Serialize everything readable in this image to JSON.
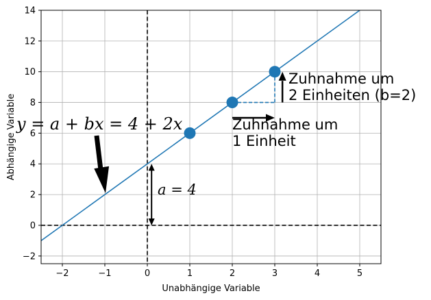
{
  "chart_data": {
    "type": "line",
    "xlabel": "Unabhängige Variable",
    "ylabel": "Abhängige Variable",
    "xlim": [
      -2.5,
      5.5
    ],
    "ylim": [
      -2.5,
      14
    ],
    "xticks": [
      -2,
      -1,
      0,
      1,
      2,
      3,
      4,
      5
    ],
    "yticks": [
      -2,
      0,
      2,
      4,
      6,
      8,
      10,
      12,
      14
    ],
    "grid": true,
    "series": [
      {
        "type": "line",
        "x": [
          -2.5,
          5.5
        ],
        "y": [
          -1,
          15
        ],
        "color": "#1f77b4"
      },
      {
        "type": "scatter",
        "x": [
          1,
          2,
          3
        ],
        "y": [
          6,
          8,
          10
        ],
        "color": "#1f77b4"
      }
    ],
    "reference_lines": [
      {
        "orientation": "vertical",
        "value": 0,
        "style": "dashed",
        "color": "#000000"
      },
      {
        "orientation": "horizontal",
        "value": 0,
        "style": "dashed",
        "color": "#000000"
      }
    ],
    "annotations": {
      "equation": "y = a + bx = 4 + 2x",
      "intercept": "a = 4",
      "increase_x": [
        "Zuhnahme um",
        "1 Einheit"
      ],
      "increase_y": [
        "Zuhnahme um",
        "2 Einheiten (b=2)"
      ]
    }
  }
}
